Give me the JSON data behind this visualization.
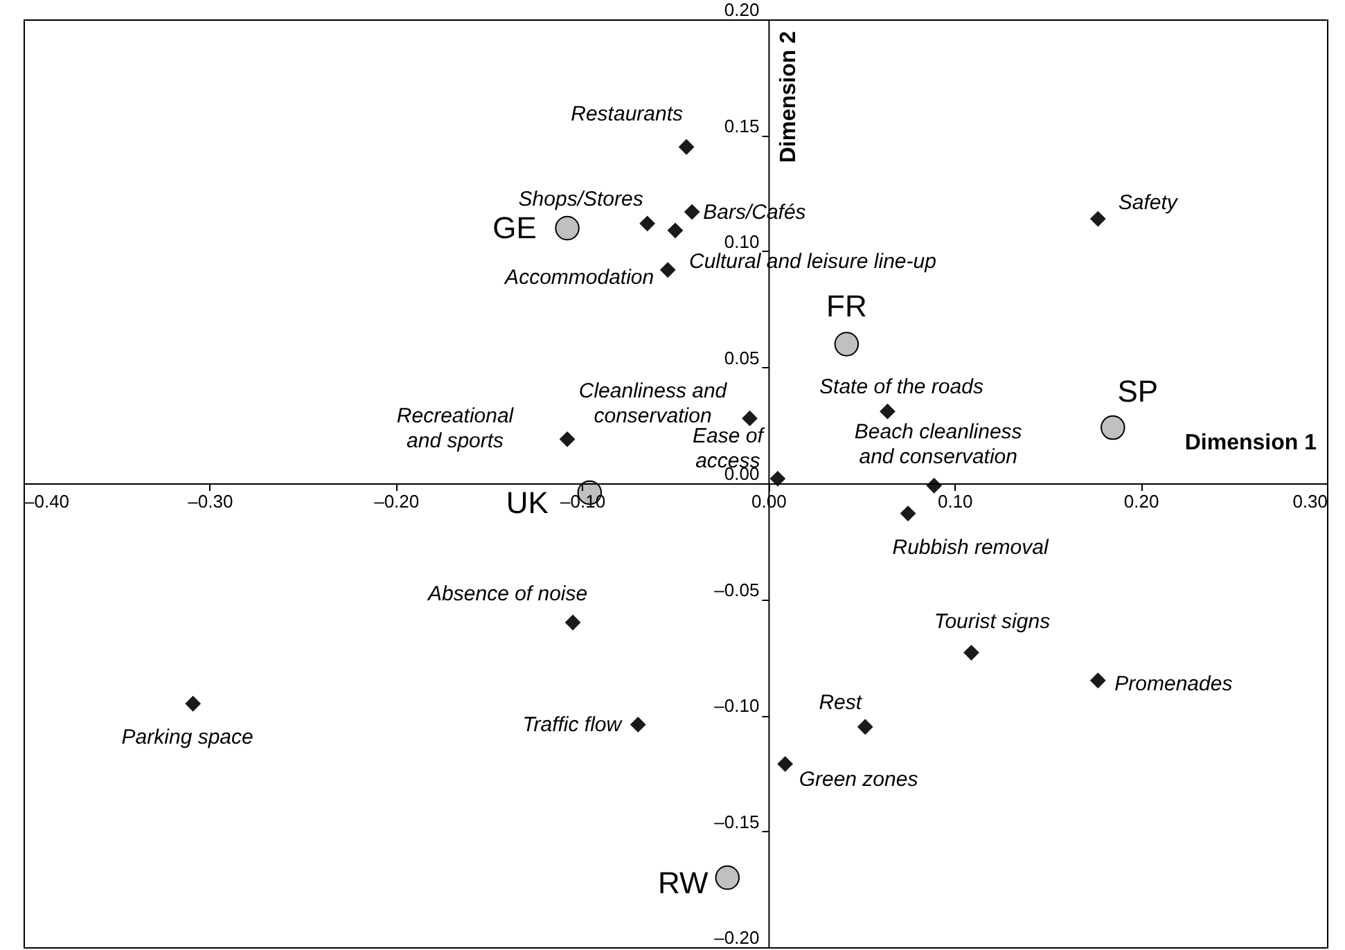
{
  "chart_data": {
    "type": "scatter",
    "xlabel": "Dimension 1",
    "ylabel": "Dimension 2",
    "xlim": [
      -0.4,
      0.3
    ],
    "ylim": [
      -0.2,
      0.2
    ],
    "xticks": [
      {
        "value": -0.4,
        "label": "–0.40"
      },
      {
        "value": -0.3,
        "label": "–0.30"
      },
      {
        "value": -0.2,
        "label": "–0.20"
      },
      {
        "value": -0.1,
        "label": "–0.10"
      },
      {
        "value": 0,
        "label": "0.00"
      },
      {
        "value": 0.1,
        "label": "0.10"
      },
      {
        "value": 0.2,
        "label": "0.20"
      },
      {
        "value": 0.3,
        "label": "0.30"
      }
    ],
    "yticks": [
      {
        "value": -0.2,
        "label": "–0.20"
      },
      {
        "value": -0.15,
        "label": "–0.15"
      },
      {
        "value": -0.1,
        "label": "–0.10"
      },
      {
        "value": -0.05,
        "label": "–0.05"
      },
      {
        "value": 0,
        "label": "0.00"
      },
      {
        "value": 0.05,
        "label": "0.05"
      },
      {
        "value": 0.1,
        "label": "0.10"
      },
      {
        "value": 0.15,
        "label": "0.15"
      },
      {
        "value": 0.2,
        "label": "0.20"
      }
    ],
    "grid": false,
    "series": [
      {
        "color": "#1a1a1a",
        "marker": "diamond",
        "x": [
          -0.044,
          -0.065,
          -0.041,
          -0.05,
          -0.054,
          0.177,
          0.064,
          -0.01,
          -0.108,
          0.005,
          0.089,
          0.075,
          -0.105,
          0.109,
          0.177,
          -0.309,
          -0.07,
          0.052,
          0.009
        ],
        "values": [
          0.145,
          0.112,
          0.117,
          0.109,
          0.092,
          0.114,
          0.031,
          0.028,
          0.019,
          0.002,
          -0.001,
          -0.013,
          -0.06,
          -0.073,
          -0.085,
          -0.095,
          -0.104,
          -0.105,
          -0.121
        ]
      },
      {
        "color": "#c0c0c0",
        "marker": "circle",
        "x": [
          -0.108,
          0.042,
          0.185,
          -0.096,
          -0.022
        ],
        "values": [
          0.11,
          0.06,
          0.024,
          -0.004,
          -0.17
        ]
      }
    ],
    "annotations": [
      {
        "text": "Restaurants",
        "x": -0.044,
        "y": 0.145
      },
      {
        "text": "Shops/Stores",
        "x": -0.065,
        "y": 0.112
      },
      {
        "text": "Bars/Cafés",
        "x": -0.041,
        "y": 0.117
      },
      {
        "text": "Cultural and leisure line-up",
        "x": -0.05,
        "y": 0.109
      },
      {
        "text": "Accommodation",
        "x": -0.054,
        "y": 0.092
      },
      {
        "text": "Safety",
        "x": 0.177,
        "y": 0.114
      },
      {
        "text": "State of the roads",
        "x": 0.064,
        "y": 0.031
      },
      {
        "text": "Cleanliness and\nconservation",
        "x": -0.01,
        "y": 0.028
      },
      {
        "text": "Recreational\nand sports",
        "x": -0.108,
        "y": 0.019
      },
      {
        "text": "Ease of\naccess",
        "x": 0.005,
        "y": 0.002
      },
      {
        "text": "Beach cleanliness\nand conservation",
        "x": 0.089,
        "y": -0.001
      },
      {
        "text": "Rubbish removal",
        "x": 0.075,
        "y": -0.013
      },
      {
        "text": "Absence of noise",
        "x": -0.105,
        "y": -0.06
      },
      {
        "text": "Tourist signs",
        "x": 0.109,
        "y": -0.073
      },
      {
        "text": "Promenades",
        "x": 0.177,
        "y": -0.085
      },
      {
        "text": "Parking space",
        "x": -0.309,
        "y": -0.095
      },
      {
        "text": "Traffic flow",
        "x": -0.07,
        "y": -0.104
      },
      {
        "text": "Rest",
        "x": 0.052,
        "y": -0.105
      },
      {
        "text": "Green zones",
        "x": 0.009,
        "y": -0.121
      },
      {
        "text": "GE",
        "x": -0.108,
        "y": 0.11
      },
      {
        "text": "FR",
        "x": 0.042,
        "y": 0.06
      },
      {
        "text": "SP",
        "x": 0.185,
        "y": 0.024
      },
      {
        "text": "UK",
        "x": -0.096,
        "y": -0.004
      },
      {
        "text": "RW",
        "x": -0.022,
        "y": -0.17
      }
    ]
  }
}
